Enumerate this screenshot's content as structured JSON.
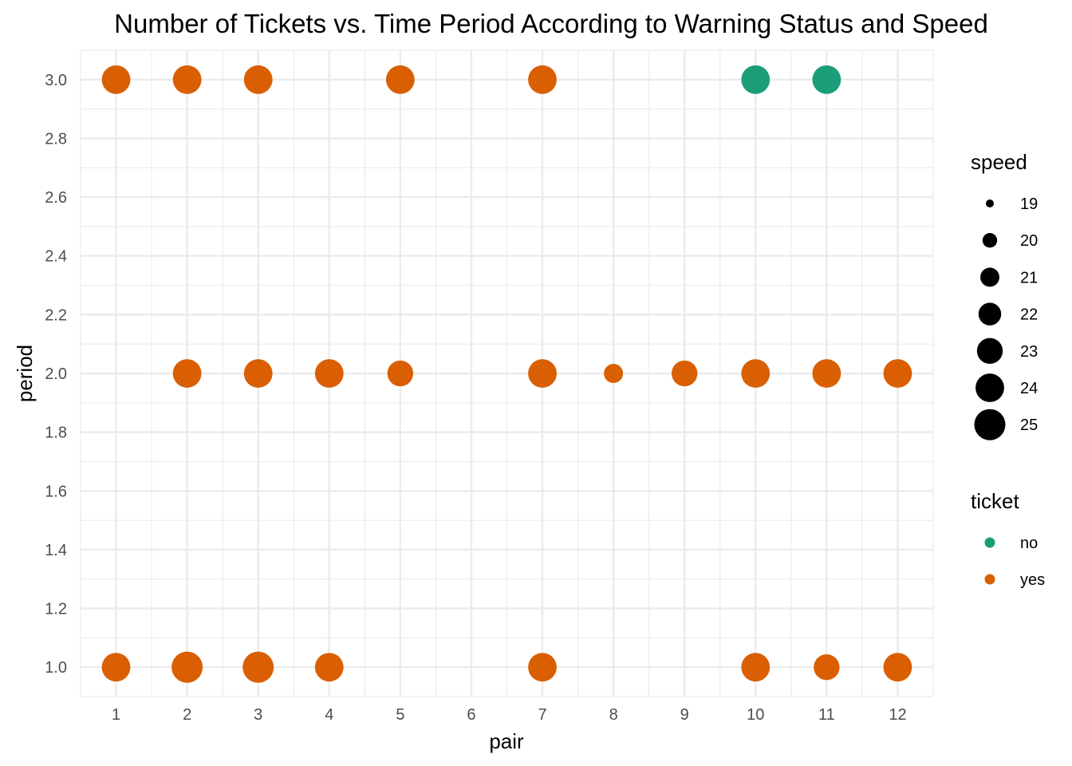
{
  "chart_data": {
    "type": "scatter",
    "title": "Number of Tickets vs. Time Period According to Warning Status and Speed",
    "xlabel": "pair",
    "ylabel": "period",
    "xlim": [
      0.5,
      12.5
    ],
    "ylim": [
      0.9,
      3.1
    ],
    "x_ticks": [
      "1",
      "2",
      "3",
      "4",
      "5",
      "6",
      "7",
      "8",
      "9",
      "10",
      "11",
      "12"
    ],
    "y_ticks": [
      "1.0",
      "1.2",
      "1.4",
      "1.6",
      "1.8",
      "2.0",
      "2.2",
      "2.4",
      "2.6",
      "2.8",
      "3.0"
    ],
    "grid": true,
    "legend_position": "right",
    "size_legend": {
      "title": "speed",
      "values": [
        19,
        20,
        21,
        22,
        23,
        24,
        25
      ],
      "labels": [
        "19",
        "20",
        "21",
        "22",
        "23",
        "24",
        "25"
      ]
    },
    "color_legend": {
      "title": "ticket",
      "entries": [
        {
          "label": "no",
          "color": "#1b9e77"
        },
        {
          "label": "yes",
          "color": "#d95f02"
        }
      ]
    },
    "points": [
      {
        "pair": 1,
        "period": 3,
        "speed": 24,
        "ticket": "yes"
      },
      {
        "pair": 2,
        "period": 3,
        "speed": 24,
        "ticket": "yes"
      },
      {
        "pair": 3,
        "period": 3,
        "speed": 24,
        "ticket": "yes"
      },
      {
        "pair": 5,
        "period": 3,
        "speed": 24,
        "ticket": "yes"
      },
      {
        "pair": 7,
        "period": 3,
        "speed": 24,
        "ticket": "yes"
      },
      {
        "pair": 10,
        "period": 3,
        "speed": 24,
        "ticket": "no"
      },
      {
        "pair": 11,
        "period": 3,
        "speed": 24,
        "ticket": "no"
      },
      {
        "pair": 2,
        "period": 2,
        "speed": 24,
        "ticket": "yes"
      },
      {
        "pair": 3,
        "period": 2,
        "speed": 24,
        "ticket": "yes"
      },
      {
        "pair": 4,
        "period": 2,
        "speed": 24,
        "ticket": "yes"
      },
      {
        "pair": 5,
        "period": 2,
        "speed": 23,
        "ticket": "yes"
      },
      {
        "pair": 7,
        "period": 2,
        "speed": 24,
        "ticket": "yes"
      },
      {
        "pair": 8,
        "period": 2,
        "speed": 21,
        "ticket": "yes"
      },
      {
        "pair": 9,
        "period": 2,
        "speed": 23,
        "ticket": "yes"
      },
      {
        "pair": 10,
        "period": 2,
        "speed": 24,
        "ticket": "yes"
      },
      {
        "pair": 11,
        "period": 2,
        "speed": 24,
        "ticket": "yes"
      },
      {
        "pair": 12,
        "period": 2,
        "speed": 24,
        "ticket": "yes"
      },
      {
        "pair": 1,
        "period": 1,
        "speed": 24,
        "ticket": "yes"
      },
      {
        "pair": 2,
        "period": 1,
        "speed": 25,
        "ticket": "yes"
      },
      {
        "pair": 3,
        "period": 1,
        "speed": 25,
        "ticket": "yes"
      },
      {
        "pair": 4,
        "period": 1,
        "speed": 24,
        "ticket": "yes"
      },
      {
        "pair": 7,
        "period": 1,
        "speed": 24,
        "ticket": "yes"
      },
      {
        "pair": 10,
        "period": 1,
        "speed": 24,
        "ticket": "yes"
      },
      {
        "pair": 11,
        "period": 1,
        "speed": 23,
        "ticket": "yes"
      },
      {
        "pair": 12,
        "period": 1,
        "speed": 24,
        "ticket": "yes"
      }
    ]
  }
}
